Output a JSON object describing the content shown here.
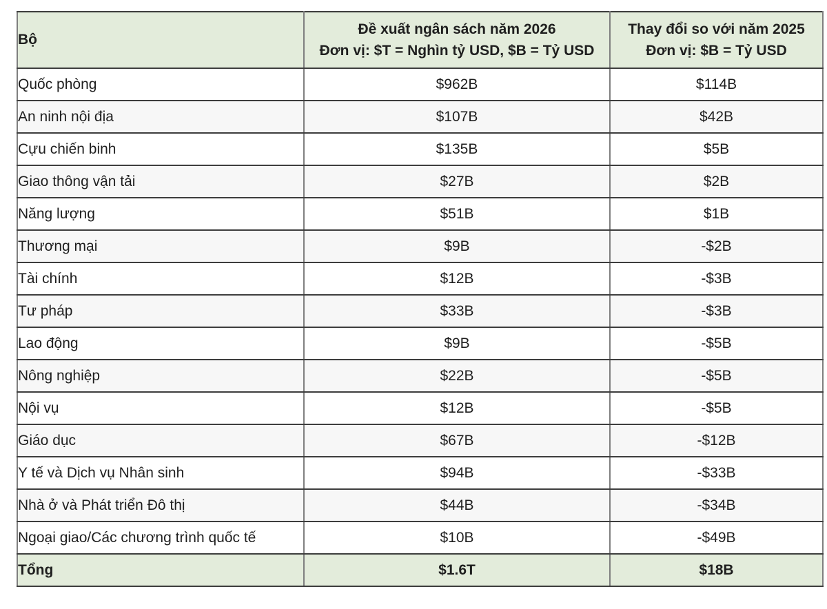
{
  "chart_data": {
    "type": "table",
    "title": "",
    "header": {
      "col1_label": "Bộ",
      "col2_label": "Đề xuất ngân sách năm 2026",
      "col2_unit": "Đơn vị: $T = Nghìn tỷ USD, $B = Tỷ USD",
      "col3_label": "Thay đổi so với năm 2025",
      "col3_unit": "Đơn vị: $B = Tỷ USD"
    },
    "rows": [
      {
        "ministry": "Quốc phòng",
        "budget_2026": "$962B",
        "change_vs_2025": "$114B"
      },
      {
        "ministry": "An ninh nội địa",
        "budget_2026": "$107B",
        "change_vs_2025": "$42B"
      },
      {
        "ministry": "Cựu chiến binh",
        "budget_2026": "$135B",
        "change_vs_2025": "$5B"
      },
      {
        "ministry": "Giao thông vận tải",
        "budget_2026": "$27B",
        "change_vs_2025": "$2B"
      },
      {
        "ministry": "Năng lượng",
        "budget_2026": "$51B",
        "change_vs_2025": "$1B"
      },
      {
        "ministry": "Thương mại",
        "budget_2026": "$9B",
        "change_vs_2025": "-$2B"
      },
      {
        "ministry": "Tài chính",
        "budget_2026": "$12B",
        "change_vs_2025": "-$3B"
      },
      {
        "ministry": "Tư pháp",
        "budget_2026": "$33B",
        "change_vs_2025": "-$3B"
      },
      {
        "ministry": "Lao động",
        "budget_2026": "$9B",
        "change_vs_2025": "-$5B"
      },
      {
        "ministry": "Nông nghiệp",
        "budget_2026": "$22B",
        "change_vs_2025": "-$5B"
      },
      {
        "ministry": "Nội vụ",
        "budget_2026": "$12B",
        "change_vs_2025": "-$5B"
      },
      {
        "ministry": "Giáo dục",
        "budget_2026": "$67B",
        "change_vs_2025": "-$12B"
      },
      {
        "ministry": "Y tế và Dịch vụ Nhân sinh",
        "budget_2026": "$94B",
        "change_vs_2025": "-$33B"
      },
      {
        "ministry": "Nhà ở và Phát triển Đô thị",
        "budget_2026": "$44B",
        "change_vs_2025": "-$34B"
      },
      {
        "ministry": "Ngoại giao/Các chương trình quốc tế",
        "budget_2026": "$10B",
        "change_vs_2025": "-$49B"
      }
    ],
    "total_row": {
      "label": "Tổng",
      "budget_2026": "$1.6T",
      "change_vs_2025": "$18B"
    },
    "layout_hints": {
      "grid": "on",
      "alternating_row_shading": true
    }
  },
  "colors": {
    "header_green": "#e3ecdb",
    "row_alt_gray": "#f7f7f7",
    "row_white": "#ffffff",
    "border_horizontal": "#3d3d3d",
    "border_vertical": "#7f7f7f",
    "text": "#1f1f1f"
  }
}
